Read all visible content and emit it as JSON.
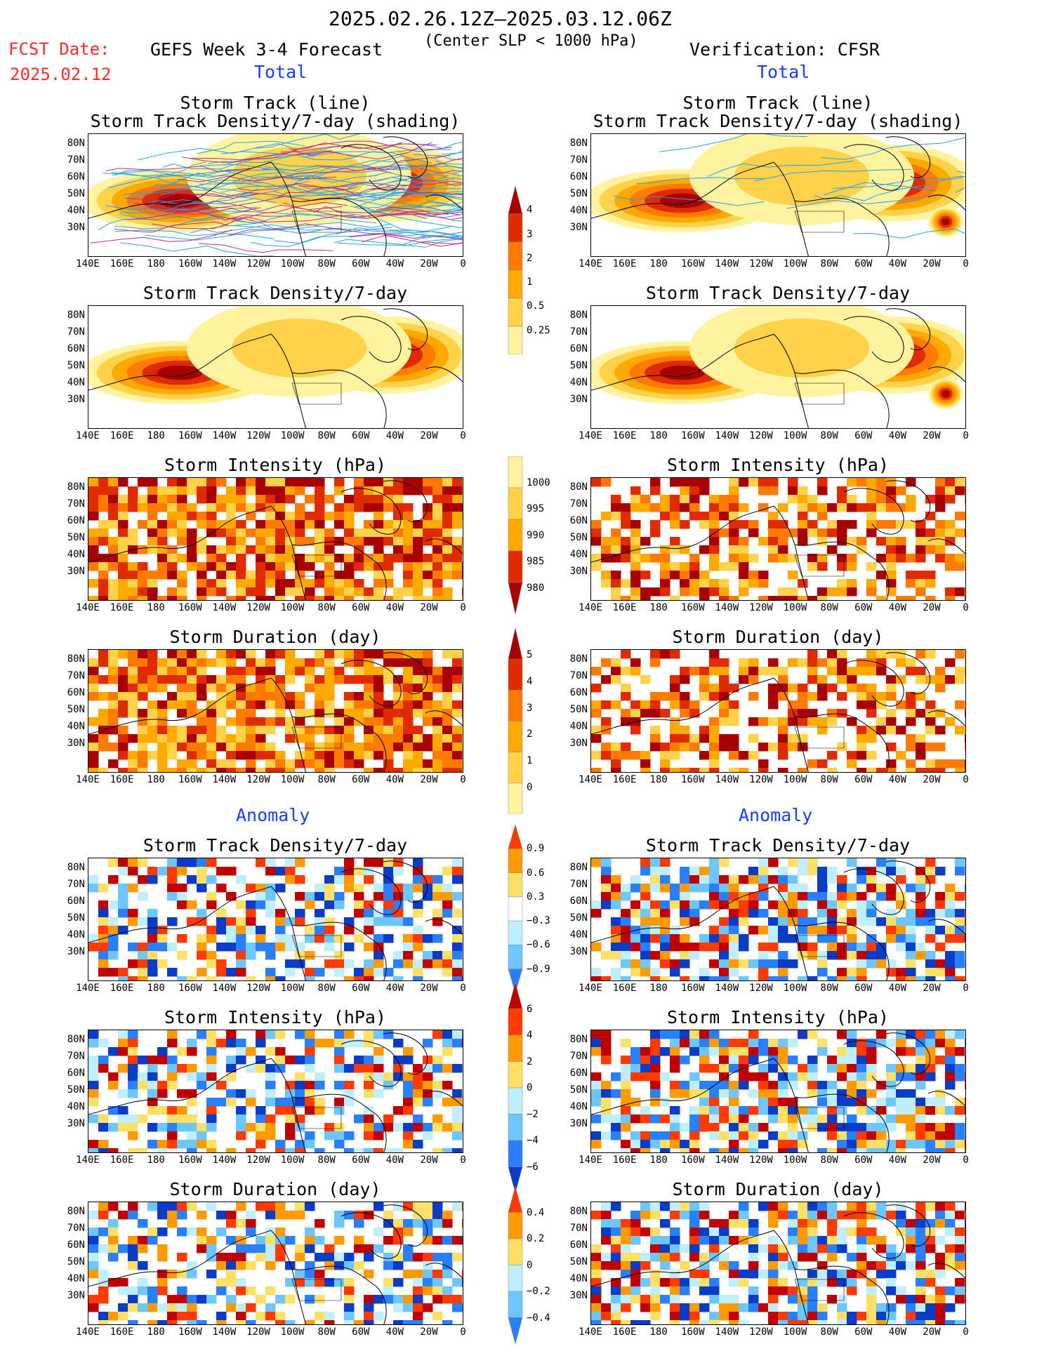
{
  "header": {
    "date_range": "2025.02.26.12Z–2025.03.12.06Z",
    "subtitle": "(Center SLP < 1000 hPa)",
    "fcst_label": "FCST Date:",
    "fcst_date": "2025.02.12",
    "left_title": "GEFS Week 3-4 Forecast",
    "right_title": "Verification: CFSR",
    "total_label": "Total",
    "anomaly_label": "Anomaly"
  },
  "panel_titles": {
    "track_line": "Storm Track (line)",
    "track_shading": "Storm Track Density/7-day (shading)",
    "density": "Storm Track Density/7-day",
    "intensity": "Storm Intensity (hPa)",
    "duration": "Storm Duration (day)"
  },
  "axes": {
    "lat_labels": [
      "80N",
      "70N",
      "60N",
      "50N",
      "40N",
      "30N"
    ],
    "lon_labels": [
      "140E",
      "160E",
      "180",
      "160W",
      "140W",
      "120W",
      "100W",
      "80W",
      "60W",
      "40W",
      "20W",
      "0"
    ]
  },
  "colorbars": {
    "density_total": [
      "4",
      "3",
      "2",
      "1",
      "0.5",
      "0.25"
    ],
    "intensity_total": [
      "1000",
      "995",
      "990",
      "985",
      "980"
    ],
    "duration_total": [
      "5",
      "4",
      "3",
      "2",
      "1",
      "0"
    ],
    "density_anom": [
      "0.9",
      "0.6",
      "0.3",
      "−0.3",
      "−0.6",
      "−0.9"
    ],
    "intensity_anom": [
      "6",
      "4",
      "2",
      "0",
      "−2",
      "−4",
      "−6"
    ],
    "duration_anom": [
      "0.4",
      "0.2",
      "0",
      "−0.2",
      "−0.4"
    ]
  },
  "palettes": {
    "warm": [
      "#fff3a0",
      "#ffd24a",
      "#ffa800",
      "#ff7a00",
      "#e02a00",
      "#a80000"
    ],
    "anom_pos": [
      "#ffe066",
      "#ff9a00",
      "#ff3a00",
      "#c00000"
    ],
    "anom_neg": [
      "#bfeeff",
      "#6ec6ff",
      "#2a7fff",
      "#0a3cc8"
    ]
  }
}
